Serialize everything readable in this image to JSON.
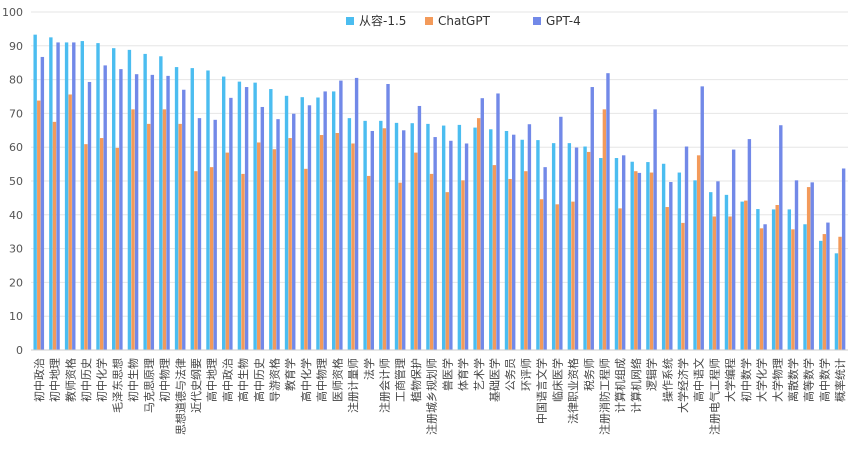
{
  "chart_data": {
    "type": "bar",
    "title": "",
    "xlabel": "",
    "ylabel": "",
    "ylim": [
      0,
      100
    ],
    "yticks": [
      0,
      10,
      20,
      30,
      40,
      50,
      60,
      70,
      80,
      90,
      100
    ],
    "grid": true,
    "legend_position": "top-center",
    "categories": [
      "初中政治",
      "初中地理",
      "教师资格",
      "初中历史",
      "初中化学",
      "毛泽东思想",
      "初中生物",
      "马克思原理",
      "初中物理",
      "思想道德与法律",
      "近代史纲要",
      "高中地理",
      "高中政治",
      "高中生物",
      "高中历史",
      "导游资格",
      "教育学",
      "高中化学",
      "高中物理",
      "医师资格",
      "注册计量师",
      "法学",
      "注册会计师",
      "工商管理",
      "植物保护",
      "注册城乡规划师",
      "兽医学",
      "体育学",
      "艺术学",
      "基础医学",
      "公务员",
      "环评师",
      "中国语言文学",
      "临床医学",
      "法律职业资格",
      "税务师",
      "注册消防工程师",
      "计算机组成",
      "计算机网络",
      "逻辑学",
      "操作系统",
      "大学经济学",
      "高中语文",
      "注册电气工程师",
      "大学编程",
      "初中数学",
      "大学化学",
      "大学物理",
      "离散数学",
      "高等数学",
      "高中数学",
      "概率统计"
    ],
    "series": [
      {
        "name": "从容-1.5",
        "color": "#4bbdf0",
        "values": [
          93.3,
          92.5,
          91,
          91.4,
          90.8,
          89.3,
          88.8,
          87.6,
          86.9,
          83.7,
          83.4,
          82.7,
          80.9,
          79.4,
          79.1,
          77.2,
          75.2,
          74.8,
          74.7,
          76.5,
          68.6,
          67.8,
          67.8,
          67.2,
          67.1,
          66.9,
          66.4,
          66.6,
          65.8,
          65.3,
          64.8,
          62.2,
          62.1,
          61.2,
          61.2,
          60.2,
          56.8,
          56.8,
          55.7,
          55.6,
          55.1,
          52.5,
          50.2,
          46.7,
          45.9,
          43.9,
          41.7,
          41.6,
          41.6,
          37.2,
          32.3,
          28.6
        ]
      },
      {
        "name": "ChatGPT",
        "color": "#f39a5a",
        "values": [
          73.8,
          67.5,
          75.6,
          60.9,
          62.7,
          59.8,
          71.2,
          66.9,
          71.2,
          66.9,
          52.9,
          54.1,
          58.4,
          52.1,
          61.4,
          59.4,
          62.7,
          53.6,
          63.6,
          64.2,
          61.1,
          51.5,
          65.6,
          49.5,
          58.4,
          52.1,
          46.7,
          50.2,
          68.6,
          54.7,
          50.6,
          52.9,
          44.6,
          43.1,
          43.9,
          58.6,
          71.2,
          41.9,
          52.9,
          52.5,
          42.3,
          37.6,
          57.6,
          39.5,
          39.5,
          44.2,
          36,
          42.9,
          35.7,
          48.2,
          34.3,
          33.5
        ]
      },
      {
        "name": "GPT-4",
        "color": "#7289e8",
        "values": [
          86.7,
          91,
          91,
          79.3,
          84.2,
          83.1,
          81.6,
          81.4,
          81.1,
          77,
          68.6,
          68.1,
          74.6,
          77.8,
          71.9,
          68.3,
          69.9,
          72.4,
          76.5,
          79.7,
          80.5,
          64.8,
          78.7,
          65,
          72.2,
          63,
          61.9,
          61.1,
          74.5,
          75.9,
          63.7,
          66.8,
          54.1,
          69,
          59.9,
          77.8,
          81.9,
          57.6,
          52.4,
          71.2,
          49.7,
          60.2,
          78,
          49.9,
          59.3,
          62.4,
          37.2,
          66.5,
          50.2,
          49.6,
          37.7,
          53.7
        ]
      }
    ]
  }
}
